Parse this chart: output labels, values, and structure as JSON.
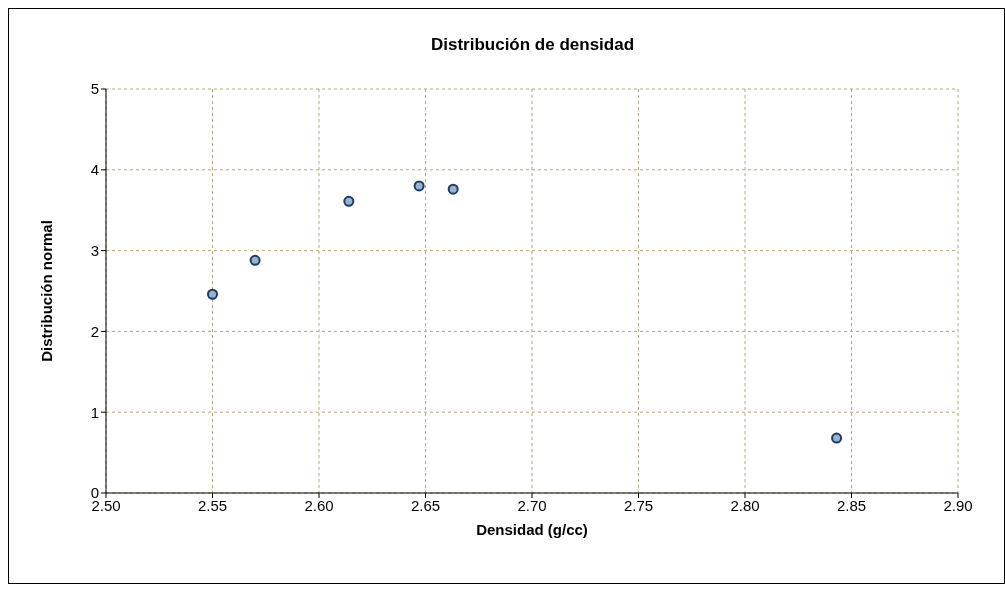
{
  "chart_data": {
    "type": "scatter",
    "title": "Distribución de densidad",
    "xlabel": "Densidad (g/cc)",
    "ylabel": "Distribución normal",
    "x": [
      2.55,
      2.57,
      2.614,
      2.647,
      2.663,
      2.843
    ],
    "values": [
      2.46,
      2.88,
      3.61,
      3.8,
      3.76,
      0.68
    ],
    "color": "#95b3d7",
    "marker": "circle",
    "grid": true,
    "xlim": [
      2.5,
      2.9
    ],
    "xticks": [
      {
        "value": 2.5,
        "label": "2.50"
      },
      {
        "value": 2.55,
        "label": "2.55"
      },
      {
        "value": 2.6,
        "label": "2.60"
      },
      {
        "value": 2.65,
        "label": "2.65"
      },
      {
        "value": 2.7,
        "label": "2.70"
      },
      {
        "value": 2.75,
        "label": "2.75"
      },
      {
        "value": 2.8,
        "label": "2.80"
      },
      {
        "value": 2.85,
        "label": "2.85"
      },
      {
        "value": 2.9,
        "label": "2.90"
      }
    ],
    "ylim": [
      0,
      5
    ],
    "yticks": [
      0,
      1,
      2,
      3,
      4,
      5
    ]
  }
}
